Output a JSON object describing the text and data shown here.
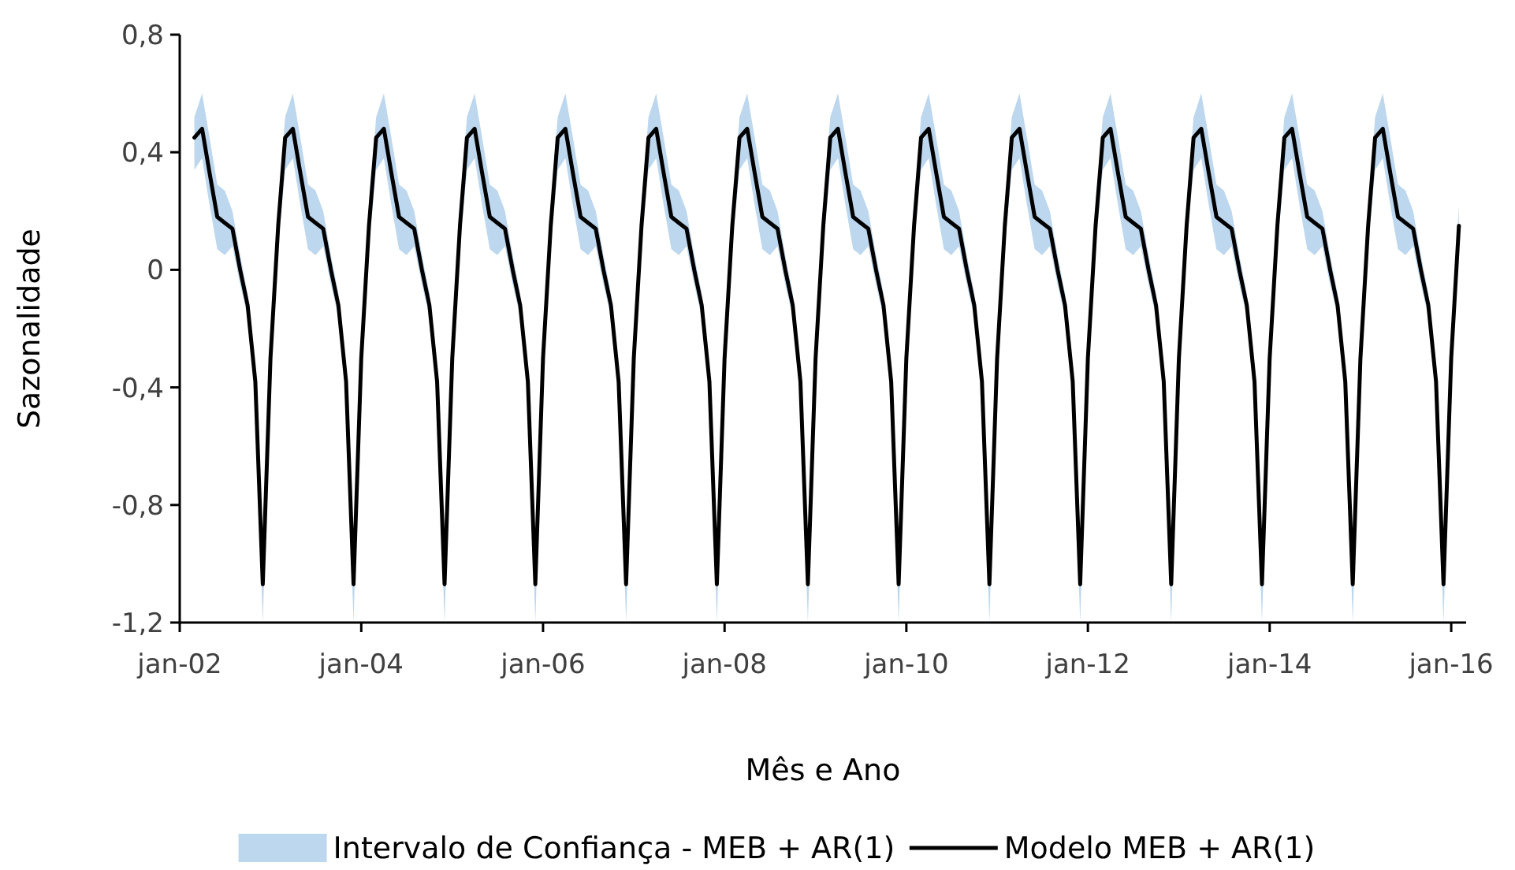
{
  "chart_data": {
    "type": "line",
    "xlabel": "Mês e Ano",
    "ylabel": "Sazonalidade",
    "x": [
      "2002-03",
      "2002-04",
      "2002-05",
      "2002-06",
      "2002-07",
      "2002-08",
      "2002-09",
      "2002-10",
      "2002-11",
      "2002-12",
      "2003-01",
      "2003-02",
      "2003-03",
      "2003-04",
      "2003-05",
      "2003-06",
      "2003-07",
      "2003-08",
      "2003-09",
      "2003-10",
      "2003-11",
      "2003-12",
      "2004-01",
      "2004-02",
      "2004-03",
      "2004-04",
      "2004-05",
      "2004-06",
      "2004-07",
      "2004-08",
      "2004-09",
      "2004-10",
      "2004-11",
      "2004-12",
      "2005-01",
      "2005-02",
      "2005-03",
      "2005-04",
      "2005-05",
      "2005-06",
      "2005-07",
      "2005-08",
      "2005-09",
      "2005-10",
      "2005-11",
      "2005-12",
      "2006-01",
      "2006-02",
      "2006-03",
      "2006-04",
      "2006-05",
      "2006-06",
      "2006-07",
      "2006-08",
      "2006-09",
      "2006-10",
      "2006-11",
      "2006-12",
      "2007-01",
      "2007-02",
      "2007-03",
      "2007-04",
      "2007-05",
      "2007-06",
      "2007-07",
      "2007-08",
      "2007-09",
      "2007-10",
      "2007-11",
      "2007-12",
      "2008-01",
      "2008-02",
      "2008-03",
      "2008-04",
      "2008-05",
      "2008-06",
      "2008-07",
      "2008-08",
      "2008-09",
      "2008-10",
      "2008-11",
      "2008-12",
      "2009-01",
      "2009-02",
      "2009-03",
      "2009-04",
      "2009-05",
      "2009-06",
      "2009-07",
      "2009-08",
      "2009-09",
      "2009-10",
      "2009-11",
      "2009-12",
      "2010-01",
      "2010-02",
      "2010-03",
      "2010-04",
      "2010-05",
      "2010-06",
      "2010-07",
      "2010-08",
      "2010-09",
      "2010-10",
      "2010-11",
      "2010-12",
      "2011-01",
      "2011-02",
      "2011-03",
      "2011-04",
      "2011-05",
      "2011-06",
      "2011-07",
      "2011-08",
      "2011-09",
      "2011-10",
      "2011-11",
      "2011-12",
      "2012-01",
      "2012-02",
      "2012-03",
      "2012-04",
      "2012-05",
      "2012-06",
      "2012-07",
      "2012-08",
      "2012-09",
      "2012-10",
      "2012-11",
      "2012-12",
      "2013-01",
      "2013-02",
      "2013-03",
      "2013-04",
      "2013-05",
      "2013-06",
      "2013-07",
      "2013-08",
      "2013-09",
      "2013-10",
      "2013-11",
      "2013-12",
      "2014-01",
      "2014-02",
      "2014-03",
      "2014-04",
      "2014-05",
      "2014-06",
      "2014-07",
      "2014-08",
      "2014-09",
      "2014-10",
      "2014-11",
      "2014-12",
      "2015-01",
      "2015-02",
      "2015-03",
      "2015-04",
      "2015-05",
      "2015-06",
      "2015-07",
      "2015-08",
      "2015-09",
      "2015-10",
      "2015-11",
      "2015-12",
      "2016-01",
      "2016-02"
    ],
    "series": [
      {
        "name": "Intervalo de Confiança - MEB + AR(1)",
        "type": "line",
        "color": "#bdd7ee",
        "values": [
          null,
          null,
          null,
          null,
          null,
          null,
          null,
          null,
          null,
          null,
          null,
          null,
          null,
          null,
          null,
          null,
          null,
          null,
          null,
          null,
          null,
          null,
          null,
          null,
          null,
          null,
          null,
          null,
          null,
          null,
          null,
          null,
          null,
          null,
          null,
          null,
          null,
          null,
          null,
          null,
          null,
          null,
          null,
          null,
          null,
          null,
          null,
          null,
          null,
          null,
          null,
          null,
          null,
          null,
          null,
          null,
          null,
          null,
          null,
          null,
          null,
          null,
          null,
          null,
          null,
          null,
          null,
          null,
          null,
          null,
          null,
          null,
          null,
          null,
          null,
          null,
          null,
          null,
          null,
          null,
          null,
          null,
          null,
          null,
          null,
          null,
          null,
          null,
          null,
          null,
          null,
          null,
          null,
          null,
          null,
          null,
          null,
          null,
          null,
          null,
          null,
          null,
          null,
          null,
          null,
          null,
          null,
          null,
          null,
          null,
          null,
          null,
          null,
          null,
          null,
          null,
          null,
          null,
          null,
          null,
          null,
          null,
          null,
          null,
          null,
          null,
          null,
          null,
          null,
          null,
          null,
          null,
          null,
          null,
          null,
          null,
          null,
          null,
          null,
          null,
          null,
          null,
          null,
          null,
          null,
          null,
          null,
          null,
          null,
          null,
          null,
          null,
          null,
          null,
          null,
          null,
          null,
          null,
          null,
          null,
          null,
          null,
          null,
          null,
          null,
          null,
          null,
          null
        ],
        "lower": [
          0.34,
          0.38,
          0.22,
          0.07,
          0.05,
          0.08,
          -0.05,
          -0.16,
          -0.42,
          -1.2,
          -0.34,
          0.08,
          0.34,
          0.38,
          0.22,
          0.07,
          0.05,
          0.08,
          -0.05,
          -0.16,
          -0.42,
          -1.2,
          -0.34,
          0.08,
          0.34,
          0.38,
          0.22,
          0.07,
          0.05,
          0.08,
          -0.05,
          -0.16,
          -0.42,
          -1.2,
          -0.34,
          0.08,
          0.34,
          0.38,
          0.22,
          0.07,
          0.05,
          0.08,
          -0.05,
          -0.16,
          -0.42,
          -1.2,
          -0.34,
          0.08,
          0.34,
          0.38,
          0.22,
          0.07,
          0.05,
          0.08,
          -0.05,
          -0.16,
          -0.42,
          -1.2,
          -0.34,
          0.08,
          0.34,
          0.38,
          0.22,
          0.07,
          0.05,
          0.08,
          -0.05,
          -0.16,
          -0.42,
          -1.2,
          -0.34,
          0.08,
          0.34,
          0.38,
          0.22,
          0.07,
          0.05,
          0.08,
          -0.05,
          -0.16,
          -0.42,
          -1.2,
          -0.34,
          0.08,
          0.34,
          0.38,
          0.22,
          0.07,
          0.05,
          0.08,
          -0.05,
          -0.16,
          -0.42,
          -1.2,
          -0.34,
          0.08,
          0.34,
          0.38,
          0.22,
          0.07,
          0.05,
          0.08,
          -0.05,
          -0.16,
          -0.42,
          -1.2,
          -0.34,
          0.08,
          0.34,
          0.38,
          0.22,
          0.07,
          0.05,
          0.08,
          -0.05,
          -0.16,
          -0.42,
          -1.2,
          -0.34,
          0.08,
          0.34,
          0.38,
          0.22,
          0.07,
          0.05,
          0.08,
          -0.05,
          -0.16,
          -0.42,
          -1.2,
          -0.34,
          0.08,
          0.34,
          0.38,
          0.22,
          0.07,
          0.05,
          0.08,
          -0.05,
          -0.16,
          -0.42,
          -1.2,
          -0.34,
          0.08,
          0.34,
          0.38,
          0.22,
          0.07,
          0.05,
          0.08,
          -0.05,
          -0.16,
          -0.42,
          -1.2,
          -0.34,
          0.08,
          0.34,
          0.38,
          0.22,
          0.07,
          0.05,
          0.08,
          -0.05,
          -0.16,
          -0.42,
          -1.2,
          -0.34,
          0.08
        ],
        "upper": [
          0.52,
          0.6,
          0.45,
          0.29,
          0.27,
          0.2,
          0.05,
          -0.08,
          -0.35,
          -1,
          -0.26,
          0.22,
          0.52,
          0.6,
          0.45,
          0.29,
          0.27,
          0.2,
          0.05,
          -0.08,
          -0.35,
          -1,
          -0.26,
          0.22,
          0.52,
          0.6,
          0.45,
          0.29,
          0.27,
          0.2,
          0.05,
          -0.08,
          -0.35,
          -1,
          -0.26,
          0.22,
          0.52,
          0.6,
          0.45,
          0.29,
          0.27,
          0.2,
          0.05,
          -0.08,
          -0.35,
          -1,
          -0.26,
          0.22,
          0.52,
          0.6,
          0.45,
          0.29,
          0.27,
          0.2,
          0.05,
          -0.08,
          -0.35,
          -1,
          -0.26,
          0.22,
          0.52,
          0.6,
          0.45,
          0.29,
          0.27,
          0.2,
          0.05,
          -0.08,
          -0.35,
          -1,
          -0.26,
          0.22,
          0.52,
          0.6,
          0.45,
          0.29,
          0.27,
          0.2,
          0.05,
          -0.08,
          -0.35,
          -1,
          -0.26,
          0.22,
          0.52,
          0.6,
          0.45,
          0.29,
          0.27,
          0.2,
          0.05,
          -0.08,
          -0.35,
          -1,
          -0.26,
          0.22,
          0.52,
          0.6,
          0.45,
          0.29,
          0.27,
          0.2,
          0.05,
          -0.08,
          -0.35,
          -1,
          -0.26,
          0.22,
          0.52,
          0.6,
          0.45,
          0.29,
          0.27,
          0.2,
          0.05,
          -0.08,
          -0.35,
          -1,
          -0.26,
          0.22,
          0.52,
          0.6,
          0.45,
          0.29,
          0.27,
          0.2,
          0.05,
          -0.08,
          -0.35,
          -1,
          -0.26,
          0.22,
          0.52,
          0.6,
          0.45,
          0.29,
          0.27,
          0.2,
          0.05,
          -0.08,
          -0.35,
          -1,
          -0.26,
          0.22,
          0.52,
          0.6,
          0.45,
          0.29,
          0.27,
          0.2,
          0.05,
          -0.08,
          -0.35,
          -1,
          -0.26,
          0.22,
          0.52,
          0.6,
          0.45,
          0.29,
          0.27,
          0.2,
          0.05,
          -0.08,
          -0.35,
          -1,
          -0.26,
          0.22
        ]
      },
      {
        "name": "Modelo MEB + AR(1)",
        "type": "line",
        "color": "#000000",
        "values": [
          0.45,
          0.48,
          0.33,
          0.18,
          0.16,
          0.14,
          0,
          -0.12,
          -0.38,
          -1.07,
          -0.3,
          0.15,
          0.45,
          0.48,
          0.33,
          0.18,
          0.16,
          0.14,
          0,
          -0.12,
          -0.38,
          -1.07,
          -0.3,
          0.15,
          0.45,
          0.48,
          0.33,
          0.18,
          0.16,
          0.14,
          0,
          -0.12,
          -0.38,
          -1.07,
          -0.3,
          0.15,
          0.45,
          0.48,
          0.33,
          0.18,
          0.16,
          0.14,
          0,
          -0.12,
          -0.38,
          -1.07,
          -0.3,
          0.15,
          0.45,
          0.48,
          0.33,
          0.18,
          0.16,
          0.14,
          0,
          -0.12,
          -0.38,
          -1.07,
          -0.3,
          0.15,
          0.45,
          0.48,
          0.33,
          0.18,
          0.16,
          0.14,
          0,
          -0.12,
          -0.38,
          -1.07,
          -0.3,
          0.15,
          0.45,
          0.48,
          0.33,
          0.18,
          0.16,
          0.14,
          0,
          -0.12,
          -0.38,
          -1.07,
          -0.3,
          0.15,
          0.45,
          0.48,
          0.33,
          0.18,
          0.16,
          0.14,
          0,
          -0.12,
          -0.38,
          -1.07,
          -0.3,
          0.15,
          0.45,
          0.48,
          0.33,
          0.18,
          0.16,
          0.14,
          0,
          -0.12,
          -0.38,
          -1.07,
          -0.3,
          0.15,
          0.45,
          0.48,
          0.33,
          0.18,
          0.16,
          0.14,
          0,
          -0.12,
          -0.38,
          -1.07,
          -0.3,
          0.15,
          0.45,
          0.48,
          0.33,
          0.18,
          0.16,
          0.14,
          0,
          -0.12,
          -0.38,
          -1.07,
          -0.3,
          0.15,
          0.45,
          0.48,
          0.33,
          0.18,
          0.16,
          0.14,
          0,
          -0.12,
          -0.38,
          -1.07,
          -0.3,
          0.15,
          0.45,
          0.48,
          0.33,
          0.18,
          0.16,
          0.14,
          0,
          -0.12,
          -0.38,
          -1.07,
          -0.3,
          0.15,
          0.45,
          0.48,
          0.33,
          0.18,
          0.16,
          0.14,
          0,
          -0.12,
          -0.38,
          -1.07,
          -0.3,
          0.15
        ]
      }
    ],
    "xlim": [
      "2002-01",
      "2016-03"
    ],
    "xticks": [
      {
        "value": "2002-01",
        "label": "jan-02"
      },
      {
        "value": "2004-01",
        "label": "jan-04"
      },
      {
        "value": "2006-01",
        "label": "jan-06"
      },
      {
        "value": "2008-01",
        "label": "jan-08"
      },
      {
        "value": "2010-01",
        "label": "jan-10"
      },
      {
        "value": "2012-01",
        "label": "jan-12"
      },
      {
        "value": "2014-01",
        "label": "jan-14"
      },
      {
        "value": "2016-01",
        "label": "jan-16"
      }
    ],
    "ylim": [
      -1.2,
      0.8
    ],
    "yticks": [
      {
        "value": -1.2,
        "label": "-1,2"
      },
      {
        "value": -0.8,
        "label": "-0,8"
      },
      {
        "value": -0.4,
        "label": "-0,4"
      },
      0,
      {
        "value": 0.4,
        "label": "0,4"
      },
      {
        "value": 0.8,
        "label": "0,8"
      }
    ],
    "grid": false,
    "legend": "bottom",
    "line_style": "solid",
    "marker": "none"
  }
}
